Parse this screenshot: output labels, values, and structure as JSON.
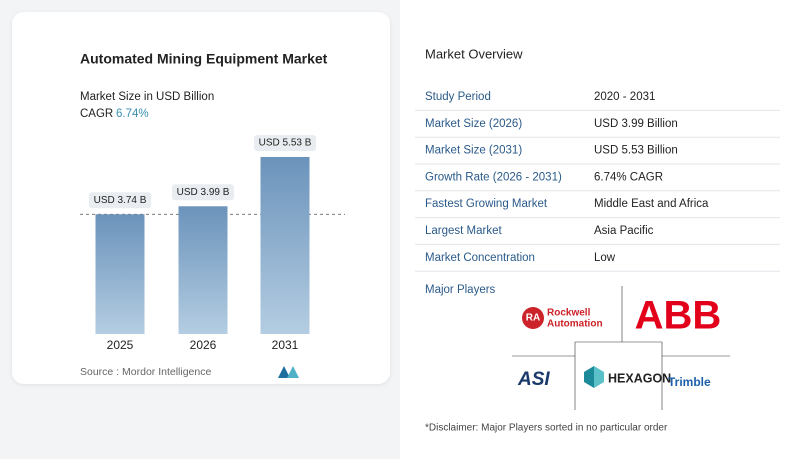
{
  "chart_data": {
    "type": "bar",
    "title": "Automated Mining Equipment Market",
    "subtitle": "Market Size in USD Billion",
    "categories": [
      "2025",
      "2026",
      "2031"
    ],
    "values": [
      3.74,
      3.99,
      5.53
    ],
    "value_labels": [
      "USD 3.74 B",
      "USD 3.99 B",
      "USD 5.53 B"
    ],
    "color": "#6b93bb"
  },
  "chart_card": {
    "cagr_label": "CAGR",
    "cagr_value": "6.74%",
    "source": "Source :  Mordor Intelligence"
  },
  "overview": {
    "title": "Market Overview",
    "rows": [
      [
        "Study Period",
        "2020 - 2031"
      ],
      [
        "Market Size (2026)",
        "USD 3.99 Billion"
      ],
      [
        "Market Size (2031)",
        "USD 5.53 Billion"
      ],
      [
        "Growth Rate (2026 - 2031)",
        "6.74% CAGR"
      ],
      [
        "Fastest Growing Market",
        "Middle East and Africa"
      ],
      [
        "Largest Market",
        "Asia Pacific"
      ],
      [
        "Market Concentration",
        "Low"
      ]
    ]
  },
  "players": {
    "title": "Major Players",
    "rockwell_badge": "RA",
    "rockwell": [
      "Rockwell",
      "Automation"
    ],
    "abb": "ABB",
    "asi": "ASI",
    "hexagon": "HEXAGON",
    "trimble": "Trimble"
  },
  "disclaimer": "*Disclaimer: Major Players sorted in no particular order"
}
